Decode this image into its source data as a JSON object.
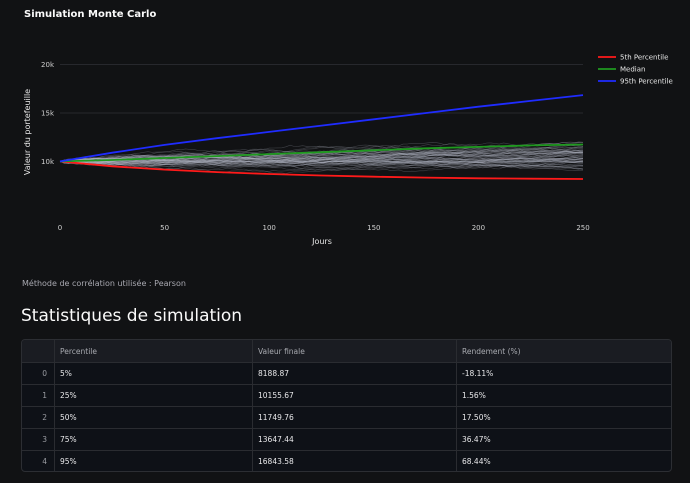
{
  "chart": {
    "title": "Simulation Monte Carlo",
    "legend": [
      {
        "label": "5th Percentile",
        "color": "#ff1a1a"
      },
      {
        "label": "Median",
        "color": "#1f9a1f"
      },
      {
        "label": "95th Percentile",
        "color": "#1f2cff"
      }
    ]
  },
  "chart_data": {
    "type": "line",
    "title": "Simulation Monte Carlo",
    "xlabel": "Jours",
    "ylabel": "Valeur du portefeuille",
    "xlim": [
      0,
      250
    ],
    "ylim": [
      5500,
      21500
    ],
    "x_ticks": [
      "0",
      "50",
      "100",
      "150",
      "200",
      "250"
    ],
    "y_ticks": [
      {
        "value": 10000,
        "label": "10k"
      },
      {
        "value": 15000,
        "label": "15k"
      },
      {
        "value": 20000,
        "label": "20k"
      }
    ],
    "grid": "horizontal",
    "legend_position": "top-right",
    "series": [
      {
        "name": "5th Percentile",
        "color": "#ff1a1a",
        "x": [
          0,
          25,
          50,
          75,
          100,
          125,
          150,
          175,
          200,
          225,
          250
        ],
        "y": [
          10000,
          9500,
          9150,
          8900,
          8700,
          8550,
          8420,
          8330,
          8260,
          8220,
          8188.87
        ]
      },
      {
        "name": "Median",
        "color": "#1f9a1f",
        "x": [
          0,
          25,
          50,
          75,
          100,
          125,
          150,
          175,
          200,
          225,
          250
        ],
        "y": [
          10000,
          10150,
          10350,
          10550,
          10750,
          10950,
          11150,
          11350,
          11500,
          11650,
          11749.76
        ]
      },
      {
        "name": "95th Percentile",
        "color": "#1f2cff",
        "x": [
          0,
          25,
          50,
          75,
          100,
          125,
          150,
          175,
          200,
          225,
          250
        ],
        "y": [
          10000,
          10900,
          11700,
          12400,
          13050,
          13700,
          14350,
          15000,
          15650,
          16250,
          16843.58
        ]
      }
    ]
  },
  "caption": "Méthode de corrélation utilisée : Pearson",
  "stats": {
    "heading": "Statistiques de simulation",
    "columns": [
      "",
      "Percentile",
      "Valeur finale",
      "Rendement (%)"
    ],
    "rows": [
      {
        "index": "0",
        "percentile": "5%",
        "value": "8188.87",
        "return": "-18.11%"
      },
      {
        "index": "1",
        "percentile": "25%",
        "value": "10155.67",
        "return": "1.56%"
      },
      {
        "index": "2",
        "percentile": "50%",
        "value": "11749.76",
        "return": "17.50%"
      },
      {
        "index": "3",
        "percentile": "75%",
        "value": "13647.44",
        "return": "36.47%"
      },
      {
        "index": "4",
        "percentile": "95%",
        "value": "16843.58",
        "return": "68.44%"
      }
    ]
  }
}
